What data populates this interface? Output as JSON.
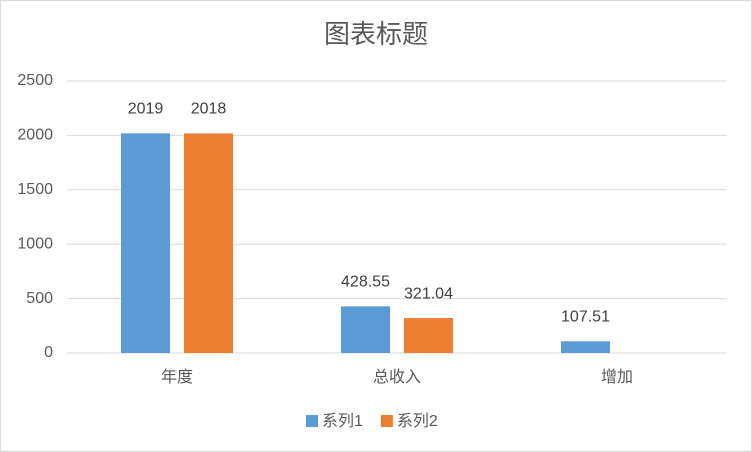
{
  "chart_data": {
    "type": "bar",
    "title": "图表标题",
    "categories": [
      "年度",
      "总收入",
      "增加"
    ],
    "series": [
      {
        "name": "系列1",
        "color": "#5b9bd5",
        "values": [
          2019,
          428.55,
          107.51
        ]
      },
      {
        "name": "系列2",
        "color": "#ed7d31",
        "values": [
          2018,
          321.04,
          null
        ]
      }
    ],
    "ylim": [
      0,
      2500
    ],
    "yticks": [
      0,
      500,
      1000,
      1500,
      2000,
      2500
    ],
    "grid": true,
    "legend": "bottom"
  }
}
